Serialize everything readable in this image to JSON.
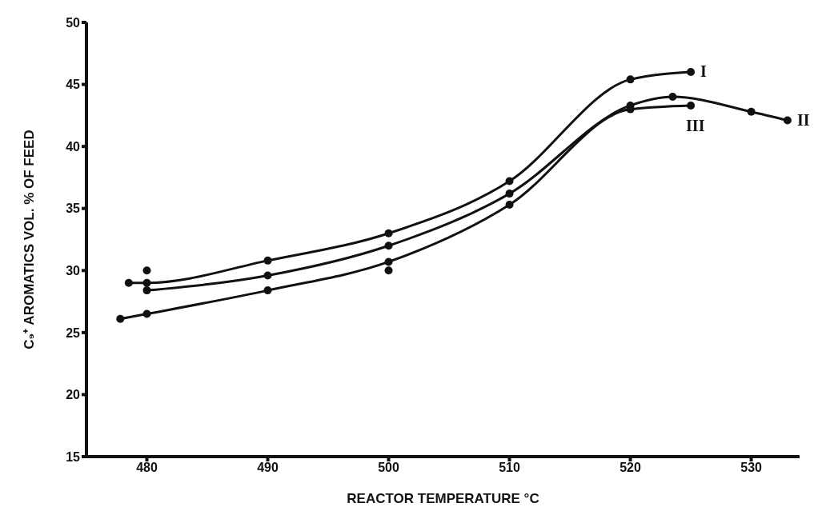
{
  "chart_data": {
    "type": "line",
    "xlabel": "REACTOR TEMPERATURE °C",
    "ylabel": "C₉⁺ AROMATICS VOL. % OF FEED",
    "series": [
      {
        "name": "I",
        "color": "#111111",
        "x": [
          478.5,
          480,
          490,
          500,
          510,
          520,
          525
        ],
        "values": [
          29.0,
          29.0,
          30.8,
          33.0,
          37.2,
          45.4,
          46.0
        ]
      },
      {
        "name": "II",
        "color": "#111111",
        "x": [
          480,
          490,
          500,
          510,
          520,
          523.5,
          530,
          533
        ],
        "values": [
          28.4,
          29.6,
          32.0,
          36.2,
          43.3,
          44.0,
          42.8,
          42.1
        ]
      },
      {
        "name": "III",
        "color": "#111111",
        "x": [
          477.8,
          480,
          490,
          500,
          510,
          520,
          525
        ],
        "values": [
          26.1,
          26.5,
          28.4,
          30.7,
          35.3,
          43.0,
          43.3
        ]
      },
      {
        "type": "scatter",
        "color": "#111111",
        "x": [
          480,
          500
        ],
        "values": [
          30.0,
          30.0
        ]
      }
    ],
    "xlim": [
      475,
      534
    ],
    "xticks": [
      480,
      490,
      500,
      510,
      520,
      530
    ],
    "ylim": [
      15,
      50
    ],
    "yticks": [
      15,
      20,
      25,
      30,
      35,
      40,
      45,
      50
    ],
    "grid": false,
    "legend": false,
    "marker": "circle",
    "line_style": "solid"
  }
}
